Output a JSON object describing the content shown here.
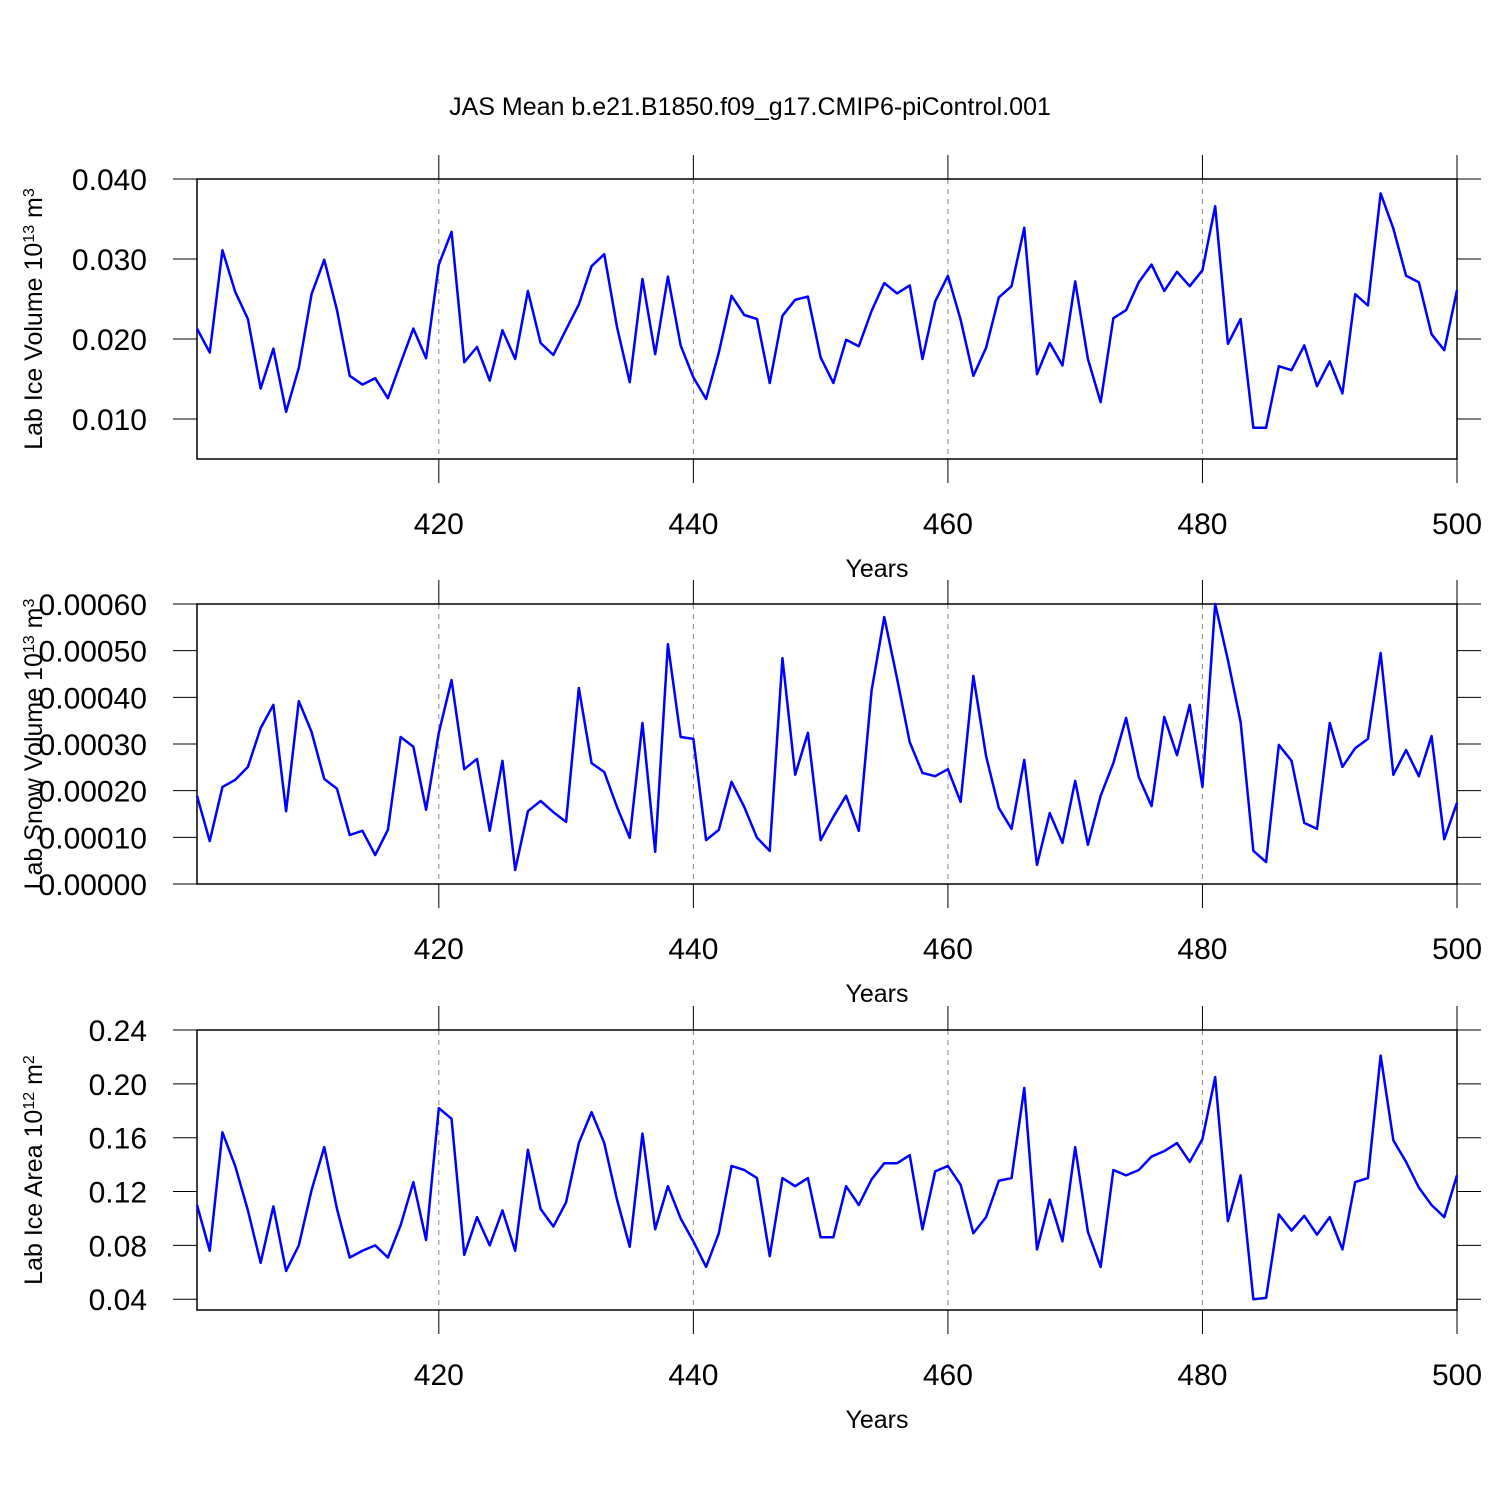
{
  "chart_data": [
    {
      "type": "line",
      "title": "JAS Mean b.e21.B1850.f09_g17.CMIP6-piControl.001",
      "ylabel": {
        "text": "Lab Ice Volume 10",
        "exponent": "13",
        "unit": " m",
        "unit_exponent": "3"
      },
      "xlabel": "Years",
      "color": "#0000ff",
      "grid": "x",
      "xlim": [
        401,
        500
      ],
      "xticks": [
        420,
        440,
        460,
        480,
        500
      ],
      "ylim": [
        0.005,
        0.04
      ],
      "yticks": [
        {
          "value": 0.01,
          "label": "0.010"
        },
        {
          "value": 0.02,
          "label": "0.020"
        },
        {
          "value": 0.03,
          "label": "0.030"
        },
        {
          "value": 0.04,
          "label": "0.040"
        }
      ],
      "x": [
        401,
        402,
        403,
        404,
        405,
        406,
        407,
        408,
        409,
        410,
        411,
        412,
        413,
        414,
        415,
        416,
        417,
        418,
        419,
        420,
        421,
        422,
        423,
        424,
        425,
        426,
        427,
        428,
        429,
        430,
        431,
        432,
        433,
        434,
        435,
        436,
        437,
        438,
        439,
        440,
        441,
        442,
        443,
        444,
        445,
        446,
        447,
        448,
        449,
        450,
        451,
        452,
        453,
        454,
        455,
        456,
        457,
        458,
        459,
        460,
        461,
        462,
        463,
        464,
        465,
        466,
        467,
        468,
        469,
        470,
        471,
        472,
        473,
        474,
        475,
        476,
        477,
        478,
        479,
        480,
        481,
        482,
        483,
        484,
        485,
        486,
        487,
        488,
        489,
        490,
        491,
        492,
        493,
        494,
        495,
        496,
        497,
        498,
        499,
        500
      ],
      "values": [
        0.0213,
        0.0183,
        0.0311,
        0.0259,
        0.0225,
        0.0138,
        0.0188,
        0.0109,
        0.0164,
        0.0256,
        0.0299,
        0.0236,
        0.0154,
        0.0143,
        0.0151,
        0.0126,
        0.017,
        0.0213,
        0.0176,
        0.0293,
        0.0334,
        0.0171,
        0.019,
        0.0148,
        0.0211,
        0.0175,
        0.026,
        0.0195,
        0.018,
        0.0212,
        0.0243,
        0.0291,
        0.0306,
        0.0215,
        0.0146,
        0.0275,
        0.0181,
        0.0278,
        0.0192,
        0.0152,
        0.0125,
        0.0183,
        0.0254,
        0.023,
        0.0225,
        0.0145,
        0.0229,
        0.0249,
        0.0253,
        0.0177,
        0.0145,
        0.0199,
        0.0191,
        0.0235,
        0.027,
        0.0257,
        0.0267,
        0.0175,
        0.0247,
        0.0279,
        0.0224,
        0.0154,
        0.0189,
        0.0252,
        0.0266,
        0.0339,
        0.0156,
        0.0195,
        0.0167,
        0.0272,
        0.0175,
        0.0121,
        0.0226,
        0.0236,
        0.0271,
        0.0293,
        0.026,
        0.0284,
        0.0266,
        0.0286,
        0.0366,
        0.0194,
        0.0225,
        0.0089,
        0.0089,
        0.0166,
        0.0161,
        0.0192,
        0.0141,
        0.0172,
        0.0132,
        0.0256,
        0.0242,
        0.0382,
        0.0338,
        0.0279,
        0.0271,
        0.0206,
        0.0186,
        0.0261
      ]
    },
    {
      "type": "line",
      "ylabel": {
        "text": "Lab Snow Volume 10",
        "exponent": "13",
        "unit": " m",
        "unit_exponent": "3"
      },
      "xlabel": "Years",
      "color": "#0000ff",
      "grid": "x",
      "xlim": [
        401,
        500
      ],
      "xticks": [
        420,
        440,
        460,
        480,
        500
      ],
      "ylim": [
        0,
        0.0006
      ],
      "yticks": [
        {
          "value": 0,
          "label": "0.00000"
        },
        {
          "value": 0.0001,
          "label": "0.00010"
        },
        {
          "value": 0.0002,
          "label": "0.00020"
        },
        {
          "value": 0.0003,
          "label": "0.00030"
        },
        {
          "value": 0.0004,
          "label": "0.00040"
        },
        {
          "value": 0.0005,
          "label": "0.00050"
        },
        {
          "value": 0.0006,
          "label": "0.00060"
        }
      ],
      "x": [
        401,
        402,
        403,
        404,
        405,
        406,
        407,
        408,
        409,
        410,
        411,
        412,
        413,
        414,
        415,
        416,
        417,
        418,
        419,
        420,
        421,
        422,
        423,
        424,
        425,
        426,
        427,
        428,
        429,
        430,
        431,
        432,
        433,
        434,
        435,
        436,
        437,
        438,
        439,
        440,
        441,
        442,
        443,
        444,
        445,
        446,
        447,
        448,
        449,
        450,
        451,
        452,
        453,
        454,
        455,
        456,
        457,
        458,
        459,
        460,
        461,
        462,
        463,
        464,
        465,
        466,
        467,
        468,
        469,
        470,
        471,
        472,
        473,
        474,
        475,
        476,
        477,
        478,
        479,
        480,
        481,
        482,
        483,
        484,
        485,
        486,
        487,
        488,
        489,
        490,
        491,
        492,
        493,
        494,
        495,
        496,
        497,
        498,
        499,
        500
      ],
      "values": [
        0.000189,
        9.2e-05,
        0.000208,
        0.000223,
        0.000251,
        0.000334,
        0.000384,
        0.000156,
        0.000392,
        0.000326,
        0.000225,
        0.000204,
        0.000105,
        0.000114,
        6.2e-05,
        0.000116,
        0.000315,
        0.000294,
        0.000159,
        0.000324,
        0.000437,
        0.000246,
        0.000268,
        0.000114,
        0.000264,
        3e-05,
        0.000156,
        0.000178,
        0.000154,
        0.000133,
        0.00042,
        0.000259,
        0.00024,
        0.000165,
        9.9e-05,
        0.000345,
        6.9e-05,
        0.000514,
        0.000315,
        0.000311,
        9.4e-05,
        0.000116,
        0.000219,
        0.000165,
        9.9e-05,
        7.1e-05,
        0.000484,
        0.000234,
        0.000324,
        9.4e-05,
        0.000144,
        0.000189,
        0.000114,
        0.000414,
        0.000572,
        0.000441,
        0.000304,
        0.000238,
        0.000231,
        0.000246,
        0.000176,
        0.000446,
        0.000274,
        0.000163,
        0.000118,
        0.000266,
        4.1e-05,
        0.000152,
        8.8e-05,
        0.000221,
        8.4e-05,
        0.000189,
        0.000259,
        0.000356,
        0.000229,
        0.000167,
        0.000358,
        0.000276,
        0.000384,
        0.000208,
        0.0006,
        0.00048,
        0.000347,
        7.1e-05,
        4.7e-05,
        0.000298,
        0.000264,
        0.000131,
        0.000118,
        0.000345,
        0.000251,
        0.000291,
        0.000311,
        0.000495,
        0.000234,
        0.000287,
        0.000231,
        0.000317,
        9.6e-05,
        0.000174
      ]
    },
    {
      "type": "line",
      "ylabel": {
        "text": "Lab Ice Area 10",
        "exponent": "12",
        "unit": " m",
        "unit_exponent": "2"
      },
      "xlabel": "Years",
      "color": "#0000ff",
      "grid": "x",
      "xlim": [
        401,
        500
      ],
      "xticks": [
        420,
        440,
        460,
        480,
        500
      ],
      "ylim": [
        0.032,
        0.24
      ],
      "yticks": [
        0.04,
        0.08,
        0.12,
        0.16,
        {
          "value": 0.2,
          "label": "0.20"
        },
        0.24
      ],
      "x": [
        401,
        402,
        403,
        404,
        405,
        406,
        407,
        408,
        409,
        410,
        411,
        412,
        413,
        414,
        415,
        416,
        417,
        418,
        419,
        420,
        421,
        422,
        423,
        424,
        425,
        426,
        427,
        428,
        429,
        430,
        431,
        432,
        433,
        434,
        435,
        436,
        437,
        438,
        439,
        440,
        441,
        442,
        443,
        444,
        445,
        446,
        447,
        448,
        449,
        450,
        451,
        452,
        453,
        454,
        455,
        456,
        457,
        458,
        459,
        460,
        461,
        462,
        463,
        464,
        465,
        466,
        467,
        468,
        469,
        470,
        471,
        472,
        473,
        474,
        475,
        476,
        477,
        478,
        479,
        480,
        481,
        482,
        483,
        484,
        485,
        486,
        487,
        488,
        489,
        490,
        491,
        492,
        493,
        494,
        495,
        496,
        497,
        498,
        499,
        500
      ],
      "values": [
        0.11,
        0.076,
        0.164,
        0.139,
        0.106,
        0.067,
        0.109,
        0.061,
        0.08,
        0.121,
        0.153,
        0.107,
        0.071,
        0.076,
        0.08,
        0.071,
        0.095,
        0.127,
        0.084,
        0.182,
        0.174,
        0.073,
        0.101,
        0.08,
        0.106,
        0.076,
        0.151,
        0.107,
        0.094,
        0.112,
        0.156,
        0.179,
        0.156,
        0.114,
        0.079,
        0.163,
        0.092,
        0.124,
        0.1,
        0.083,
        0.064,
        0.089,
        0.139,
        0.136,
        0.13,
        0.072,
        0.13,
        0.124,
        0.13,
        0.086,
        0.086,
        0.124,
        0.11,
        0.129,
        0.141,
        0.141,
        0.147,
        0.092,
        0.135,
        0.139,
        0.125,
        0.089,
        0.101,
        0.128,
        0.13,
        0.197,
        0.077,
        0.114,
        0.083,
        0.153,
        0.09,
        0.064,
        0.136,
        0.132,
        0.136,
        0.146,
        0.15,
        0.156,
        0.142,
        0.159,
        0.205,
        0.098,
        0.132,
        0.04,
        0.041,
        0.103,
        0.091,
        0.102,
        0.088,
        0.101,
        0.077,
        0.127,
        0.13,
        0.221,
        0.158,
        0.142,
        0.123,
        0.11,
        0.101,
        0.132
      ]
    }
  ]
}
